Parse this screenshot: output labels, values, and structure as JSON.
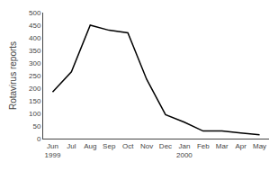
{
  "chart_data": {
    "type": "line",
    "categories": [
      "Jun\n1999",
      "Jul",
      "Aug",
      "Sep",
      "Oct",
      "Nov",
      "Dec",
      "Jan\n2000",
      "Feb",
      "Mar",
      "Apr",
      "May"
    ],
    "values": [
      185,
      265,
      450,
      430,
      420,
      235,
      95,
      65,
      30,
      30,
      22,
      15
    ],
    "color": "#000000",
    "ylabel": "Rotavirus reports",
    "ylim": [
      0,
      500
    ],
    "yticks": [
      0,
      50,
      100,
      150,
      200,
      250,
      300,
      350,
      400,
      450,
      500
    ],
    "grid": false
  }
}
